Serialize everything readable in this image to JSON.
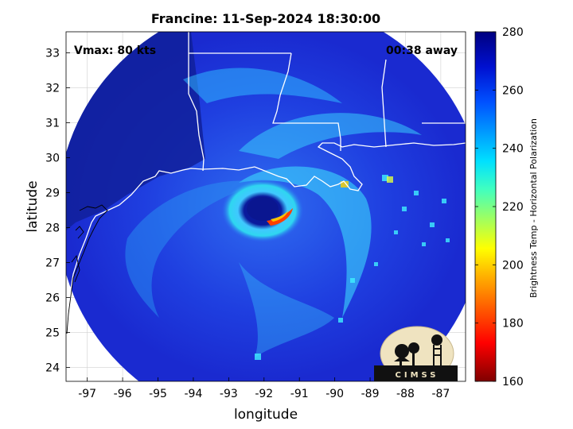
{
  "title": "Francine: 11-Sep-2024 18:30:00",
  "annotations": {
    "vmax": "Vmax: 80 kts",
    "time_away": "00:38 away"
  },
  "axes": {
    "xlabel": "longitude",
    "ylabel": "latitude",
    "xlim": [
      -97.6,
      -86.3
    ],
    "ylim": [
      23.6,
      33.6
    ],
    "xticks": [
      "-97",
      "-96",
      "-95",
      "-94",
      "-93",
      "-92",
      "-91",
      "-90",
      "-89",
      "-88",
      "-87"
    ],
    "yticks": [
      "24",
      "25",
      "26",
      "27",
      "28",
      "29",
      "30",
      "31",
      "32",
      "33"
    ],
    "grid": true
  },
  "colorbar": {
    "label": "Brightness Temp - Horizontal Polarization",
    "range": [
      160,
      280
    ],
    "ticks": [
      "280",
      "260",
      "240",
      "220",
      "200",
      "180",
      "160"
    ],
    "colormap": "jet"
  },
  "storm": {
    "name": "Francine",
    "eye_center_lon": -92.1,
    "eye_center_lat": 28.4,
    "swath_center_lon": -91.8,
    "swath_center_lat": 28.4,
    "swath_radius_deg": 5.6
  },
  "logo": {
    "text": "CIMSS"
  },
  "colors": {
    "background_swath": "#1a2fd6",
    "outside_swath": "#ffffff",
    "coast": "#ffffff"
  }
}
